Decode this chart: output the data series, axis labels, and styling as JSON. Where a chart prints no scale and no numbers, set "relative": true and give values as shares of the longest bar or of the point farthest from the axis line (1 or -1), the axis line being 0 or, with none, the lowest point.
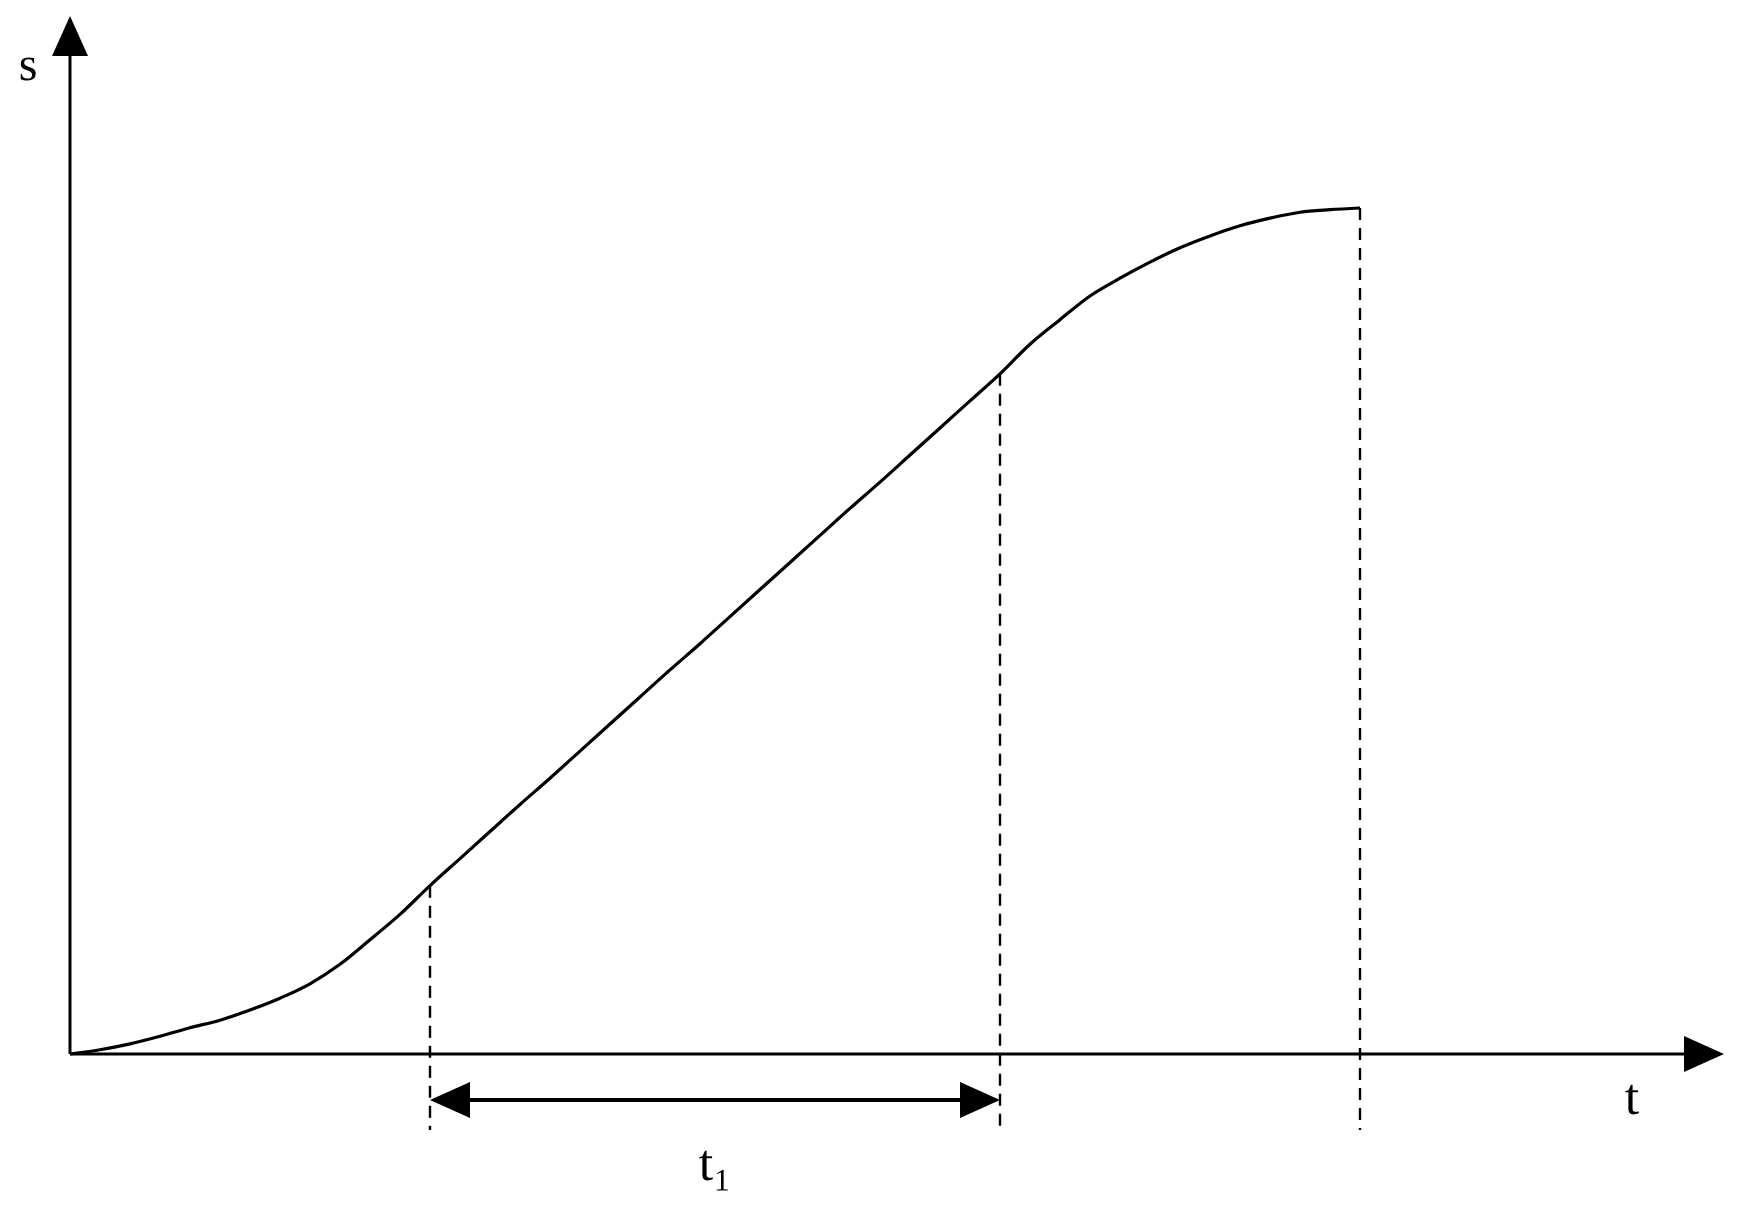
{
  "chart_data": {
    "type": "line",
    "relative": true,
    "xlabel": "t",
    "ylabel": "s",
    "categories": [
      null,
      null,
      null,
      null,
      null,
      null,
      null,
      null,
      null,
      null,
      null,
      null,
      null,
      null,
      null,
      null,
      null,
      null,
      null,
      null,
      null,
      null,
      null,
      null,
      null,
      null,
      null,
      null,
      null,
      null,
      null,
      null,
      null,
      null,
      null,
      null,
      null,
      null,
      null,
      null,
      null,
      null,
      null,
      null
    ],
    "series": [
      {
        "color": "#000000",
        "values": [
          0,
          0.005,
          0.012,
          0.021,
          0.031,
          0.04,
          0.052,
          0.066,
          0.083,
          0.106,
          0.135,
          0.165,
          0.199,
          0.231,
          0.263,
          0.295,
          0.326,
          0.358,
          0.39,
          0.422,
          0.454,
          0.485,
          0.517,
          0.549,
          0.581,
          0.613,
          0.645,
          0.676,
          0.708,
          0.74,
          0.772,
          0.804,
          0.839,
          0.868,
          0.896,
          0.917,
          0.936,
          0.953,
          0.967,
          0.979,
          0.988,
          0.995,
          0.998,
          1
        ]
      }
    ],
    "annotations": [
      "t₁"
    ],
    "marker": "none",
    "line_style": "solid",
    "grid": false,
    "tick_labels": false
  }
}
